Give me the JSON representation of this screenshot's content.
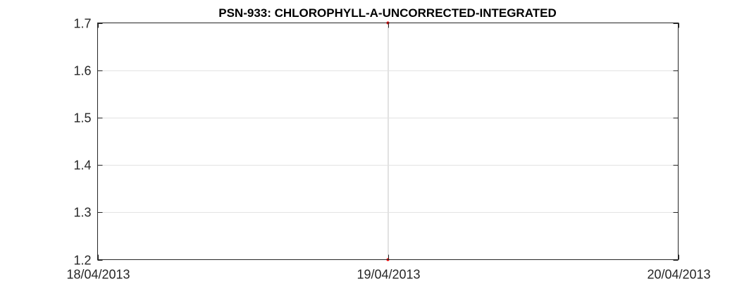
{
  "chart_data": {
    "type": "line",
    "title": "PSN-933: CHLOROPHYLL-A-UNCORRECTED-INTEGRATED",
    "xlabel": "",
    "ylabel": "",
    "x_tick_labels": [
      "18/04/2013",
      "19/04/2013",
      "20/04/2013"
    ],
    "y_tick_labels": [
      "1.2",
      "1.3",
      "1.4",
      "1.5",
      "1.6",
      "1.7"
    ],
    "xlim": [
      "18/04/2013",
      "20/04/2013"
    ],
    "ylim": [
      1.2,
      1.7
    ],
    "grid": true,
    "series": [
      {
        "color": "#e0e0e0",
        "marker_color": "#ff0000",
        "x": [
          "19/04/2013",
          "19/04/2013"
        ],
        "y": [
          1.7,
          1.2
        ]
      }
    ]
  }
}
